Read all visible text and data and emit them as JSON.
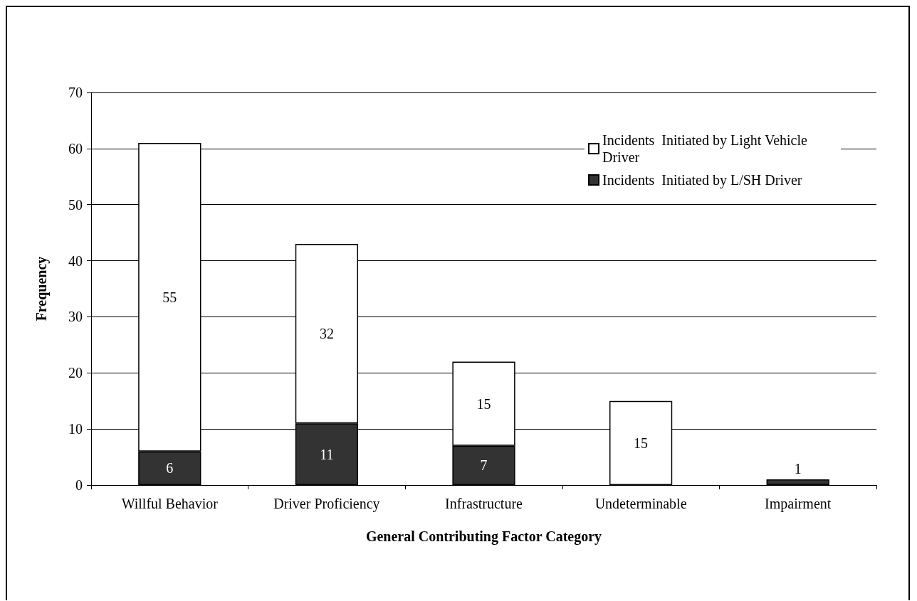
{
  "chart_data": {
    "type": "bar",
    "stacked": true,
    "xlabel": "General Contributing Factor Category",
    "ylabel": "Frequency",
    "categories": [
      "Willful Behavior",
      "Driver Proficiency",
      "Infrastructure",
      "Undeterminable",
      "Impairment"
    ],
    "series": [
      {
        "name": "Incidents  Initiated by L/SH Driver",
        "color": "#333333",
        "values": [
          6,
          11,
          7,
          null,
          1
        ]
      },
      {
        "name": "Incidents  Initiated by Light Vehicle Driver",
        "color": "#ffffff",
        "values": [
          55,
          32,
          15,
          15,
          null
        ]
      }
    ],
    "ylim": [
      0,
      70
    ],
    "yticks": [
      0,
      10,
      20,
      30,
      40,
      50,
      60,
      70
    ],
    "grid": "y",
    "legend": "top right",
    "data_labels": true
  }
}
